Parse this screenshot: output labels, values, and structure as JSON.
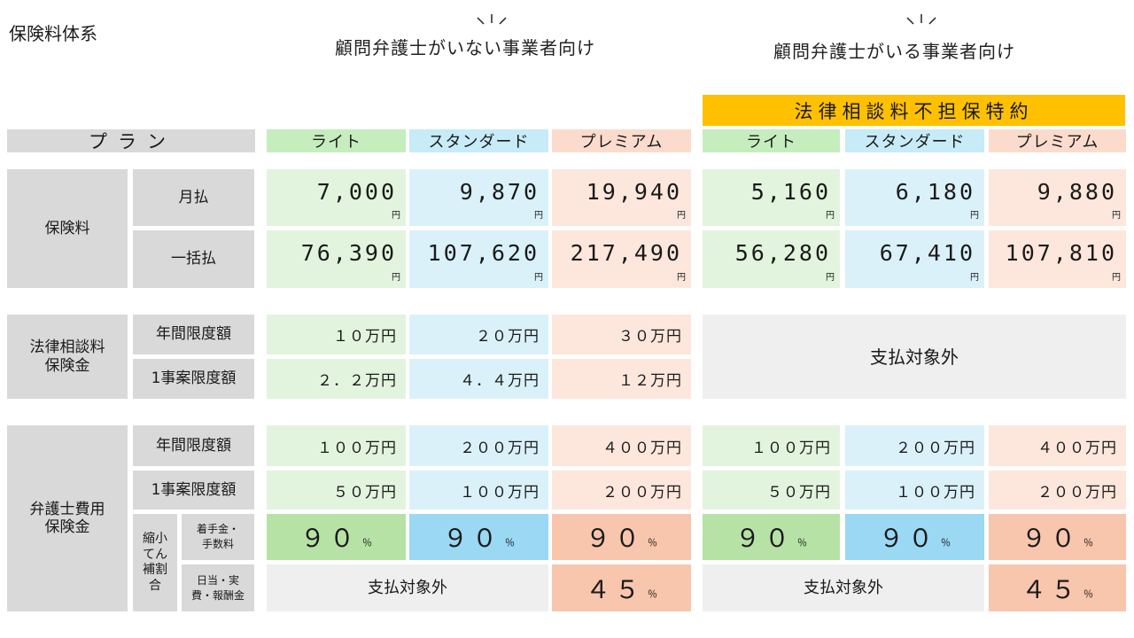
{
  "title": "保険料体系",
  "headers": {
    "left": "顧問弁護士がいない事業者向け",
    "right": "顧問弁護士がいる事業者向け",
    "special": "法律相談料不担保特約"
  },
  "plan_label": "プラン",
  "plans": [
    "ライト",
    "スタンダード",
    "プレミアム"
  ],
  "premium": {
    "label": "保険料",
    "monthly_label": "月払",
    "lump_label": "一括払",
    "yen": "円",
    "left_monthly": [
      "7,000",
      "9,870",
      "19,940"
    ],
    "left_lump": [
      "76,390",
      "107,620",
      "217,490"
    ],
    "right_monthly": [
      "5,160",
      "6,180",
      "9,880"
    ],
    "right_lump": [
      "56,280",
      "67,410",
      "107,810"
    ]
  },
  "consult": {
    "label_line1": "法律相談料",
    "label_line2": "保険金",
    "annual_label": "年間限度額",
    "case_label": "1事案限度額",
    "annual": [
      "１０万円",
      "２０万円",
      "３０万円"
    ],
    "per_case": [
      "２．２万円",
      "４．４万円",
      "１２万円"
    ],
    "right_text": "支払対象外"
  },
  "lawyer": {
    "label_line1": "弁護士費用",
    "label_line2": "保険金",
    "annual_label": "年間限度額",
    "case_label": "1事案限度額",
    "annual": [
      "１００万円",
      "２００万円",
      "４００万円"
    ],
    "per_case": [
      "５０万円",
      "１００万円",
      "２００万円"
    ],
    "reduction_label": "縮小てん補割合",
    "fee_label_line1": "着手金・",
    "fee_label_line2": "手数料",
    "daily_label_line1": "日当・実",
    "daily_label_line2": "費・報酬金",
    "fee_ratio": [
      "９０",
      "９０",
      "９０"
    ],
    "pct": "％",
    "not_covered": "支払対象外",
    "premium_daily": "４５"
  }
}
